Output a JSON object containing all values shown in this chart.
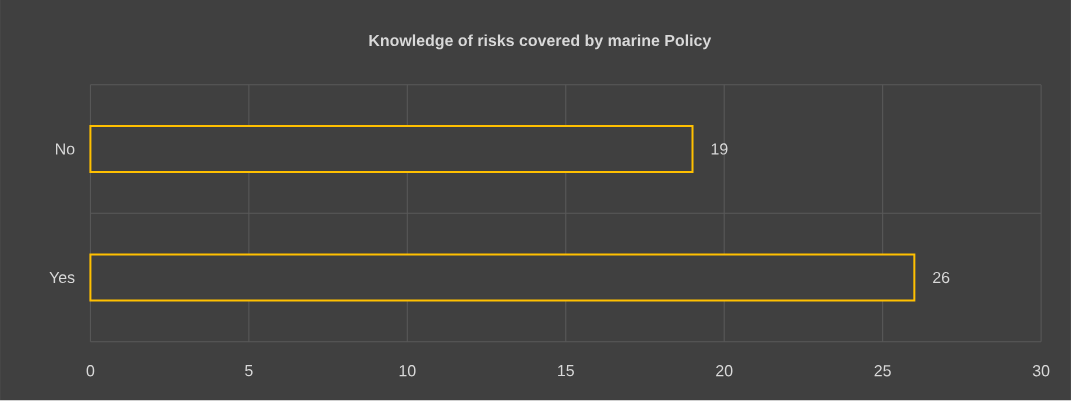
{
  "chart_data": {
    "type": "bar",
    "orientation": "horizontal",
    "title": "Knowledge of risks covered by marine Policy",
    "categories": [
      "No",
      "Yes"
    ],
    "values": [
      19,
      26
    ],
    "color": "#ffc000",
    "xlim": [
      0,
      30
    ],
    "xticks": [
      0,
      5,
      10,
      15,
      20,
      25,
      30
    ],
    "grid": true,
    "data_labels": true
  }
}
